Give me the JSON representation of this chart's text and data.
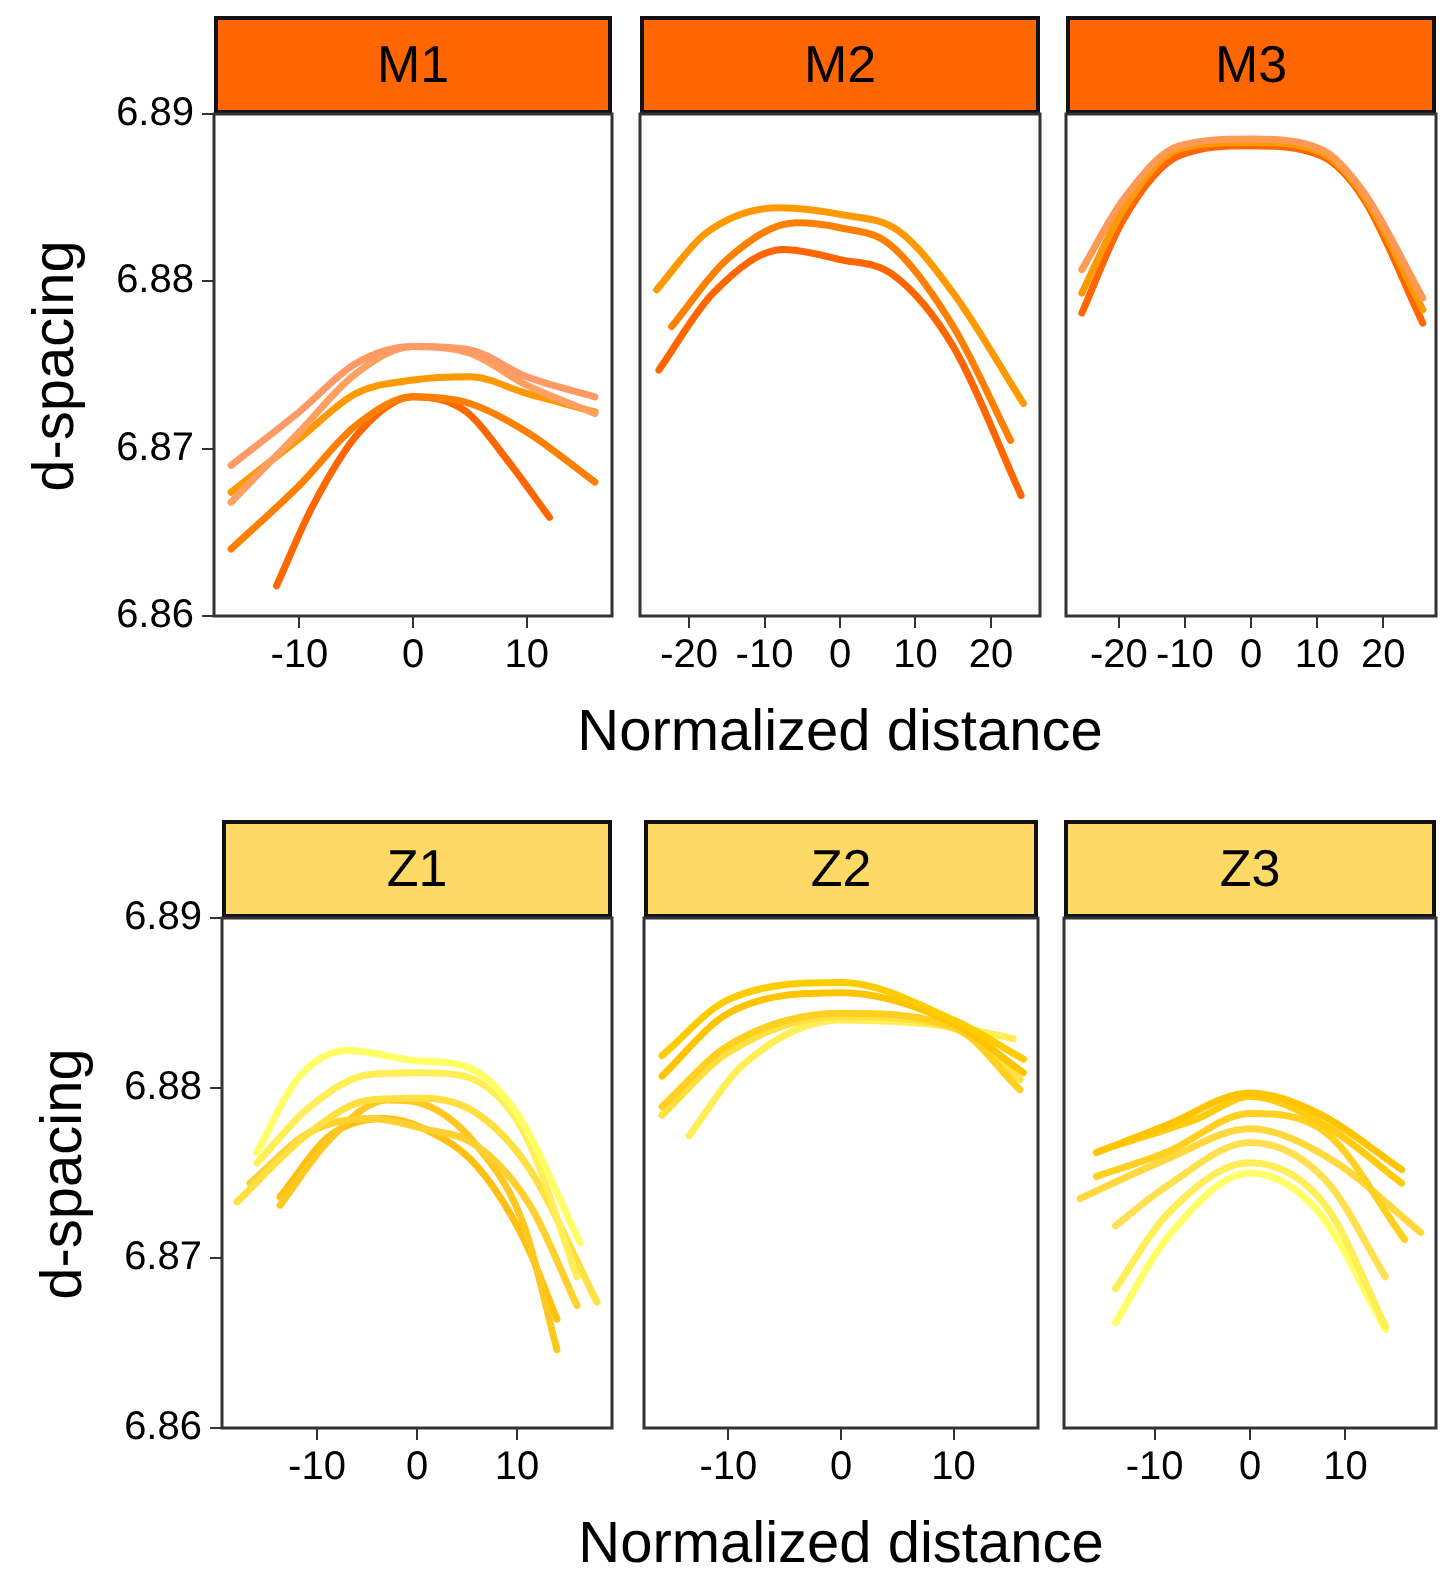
{
  "chart_data": [
    {
      "type": "line",
      "title": "M1",
      "ylabel": "d-spacing",
      "xlim": [
        -17.5,
        17.5
      ],
      "xticks": [
        -10,
        0,
        10
      ],
      "ylim": [
        6.86,
        6.89
      ],
      "yticks": [
        6.86,
        6.87,
        6.88,
        6.89
      ],
      "legend": false,
      "series": [
        {
          "color": "#ff9966",
          "x": [
            -16,
            -10,
            -5,
            0,
            5,
            10,
            16
          ],
          "values": [
            6.869,
            6.8722,
            6.8751,
            6.8761,
            6.8759,
            6.8743,
            6.8731
          ]
        },
        {
          "color": "#ffa060",
          "x": [
            -16,
            -10,
            -5,
            0,
            5,
            10,
            16
          ],
          "values": [
            6.8668,
            6.871,
            6.8745,
            6.8761,
            6.8757,
            6.8738,
            6.8721
          ]
        },
        {
          "color": "#ff9900",
          "x": [
            -16,
            -10,
            -5,
            0,
            5,
            10,
            16
          ],
          "values": [
            6.8674,
            6.8706,
            6.8733,
            6.8741,
            6.8743,
            6.8733,
            6.8722
          ]
        },
        {
          "color": "#ff8000",
          "x": [
            -16,
            -10,
            -5,
            0,
            5,
            10,
            16
          ],
          "values": [
            6.864,
            6.8678,
            6.8714,
            6.8731,
            6.8727,
            6.871,
            6.868
          ]
        },
        {
          "color": "#ff6600",
          "x": [
            -12,
            -8.8,
            -4.7,
            0,
            4.7,
            8.2,
            12
          ],
          "values": [
            6.8618,
            6.8666,
            6.871,
            6.8731,
            6.8722,
            6.8694,
            6.8659
          ]
        }
      ]
    },
    {
      "type": "line",
      "title": "M2",
      "xlabel": "Normalized distance",
      "xlim": [
        -26.5,
        26.5
      ],
      "xticks": [
        -20,
        -10,
        0,
        10,
        20
      ],
      "ylim": [
        6.86,
        6.89
      ],
      "yticks": [
        6.86,
        6.87,
        6.88,
        6.89
      ],
      "tick_labels": "x",
      "legend": false,
      "series": [
        {
          "color": "#ff9900",
          "x": [
            -24.3,
            -17.7,
            -8,
            0,
            7.8,
            15,
            24.3
          ],
          "values": [
            6.8795,
            6.8829,
            6.8844,
            6.884,
            6.883,
            6.8793,
            6.8727
          ]
        },
        {
          "color": "#ff8000",
          "x": [
            -22.3,
            -15,
            -5.8,
            0,
            6.6,
            15,
            22.6
          ],
          "values": [
            6.8773,
            6.8813,
            6.8835,
            6.8832,
            6.8822,
            6.8773,
            6.8705
          ]
        },
        {
          "color": "#ff6600",
          "x": [
            -24,
            -16.8,
            -7.5,
            0,
            7,
            15,
            24
          ],
          "values": [
            6.8747,
            6.8793,
            6.8819,
            6.8813,
            6.8804,
            6.8761,
            6.8672
          ]
        }
      ]
    },
    {
      "type": "line",
      "title": "M3",
      "xlim": [
        -28,
        28
      ],
      "xticks": [
        -20,
        -10,
        0,
        10,
        20
      ],
      "ylim": [
        6.86,
        6.89
      ],
      "yticks": [
        6.86,
        6.87,
        6.88,
        6.89
      ],
      "tick_labels": "x",
      "legend": false,
      "series": [
        {
          "color": "#ff9955",
          "x": [
            -25.6,
            -19.3,
            -10.9,
            0,
            10.6,
            17.1,
            26
          ],
          "values": [
            6.8807,
            6.8849,
            6.8881,
            6.8885,
            6.8879,
            6.8853,
            6.879
          ]
        },
        {
          "color": "#ff9900",
          "x": [
            -25.6,
            -19.3,
            -10.9,
            0,
            10.6,
            17.1,
            26
          ],
          "values": [
            6.8793,
            6.8843,
            6.8879,
            6.8883,
            6.8877,
            6.8851,
            6.8783
          ]
        },
        {
          "color": "#ff6600",
          "x": [
            -25.6,
            -19.3,
            -10.9,
            0,
            10.6,
            17.1,
            26
          ],
          "values": [
            6.8781,
            6.8837,
            6.8875,
            6.8881,
            6.8875,
            6.8849,
            6.8775
          ]
        }
      ]
    },
    {
      "type": "line",
      "title": "Z1",
      "ylabel": "d-spacing",
      "xlim": [
        -19.5,
        19.5
      ],
      "xticks": [
        -10,
        0,
        10
      ],
      "ylim": [
        6.86,
        6.89
      ],
      "yticks": [
        6.86,
        6.87,
        6.88,
        6.89
      ],
      "legend": false,
      "series": [
        {
          "color": "#ffff66",
          "x": [
            -16,
            -12,
            -7,
            0,
            4.7,
            10,
            16.3
          ],
          "values": [
            6.8762,
            6.8805,
            6.8822,
            6.8816,
            6.8813,
            6.8785,
            6.8709
          ]
        },
        {
          "color": "#ffee55",
          "x": [
            -16,
            -10.7,
            -4.7,
            0.7,
            4.7,
            10.7,
            16
          ],
          "values": [
            6.8756,
            6.8789,
            6.8808,
            6.8809,
            6.8807,
            6.8774,
            6.8689
          ]
        },
        {
          "color": "#ffe040",
          "x": [
            -18,
            -10.7,
            -4.7,
            0.7,
            6,
            11.3,
            18
          ],
          "values": [
            6.8733,
            6.8774,
            6.8793,
            6.8794,
            6.8785,
            6.8752,
            6.8674
          ]
        },
        {
          "color": "#ffd030",
          "x": [
            -16.7,
            -10.7,
            -4.7,
            0.7,
            6,
            11.3,
            16
          ],
          "values": [
            6.8744,
            6.8774,
            6.8782,
            6.8776,
            6.8766,
            6.8731,
            6.8672
          ]
        },
        {
          "color": "#ffc820",
          "x": [
            -13.7,
            -8.7,
            -3,
            1.3,
            6,
            10.7,
            14
          ],
          "values": [
            6.8731,
            6.877,
            6.8793,
            6.8789,
            6.8766,
            6.8719,
            6.8646
          ]
        },
        {
          "color": "#ffc010",
          "x": [
            -13.7,
            -8.7,
            -3.3,
            0.7,
            6,
            10.7,
            14
          ],
          "values": [
            6.8736,
            6.8772,
            6.8782,
            6.8776,
            6.8754,
            6.8711,
            6.8664
          ]
        }
      ]
    },
    {
      "type": "line",
      "title": "Z2",
      "xlabel": "Normalized distance",
      "xlim": [
        -17.5,
        17.5
      ],
      "xticks": [
        -10,
        0,
        10
      ],
      "ylim": [
        6.86,
        6.89
      ],
      "yticks": [
        6.86,
        6.87,
        6.88,
        6.89
      ],
      "tick_labels": "x",
      "legend": false,
      "series": [
        {
          "color": "#ffcc00",
          "x": [
            -15.9,
            -10,
            0,
            10,
            16.2
          ],
          "values": [
            6.8819,
            6.8852,
            6.8862,
            6.884,
            6.8817
          ]
        },
        {
          "color": "#ffc400",
          "x": [
            -15.9,
            -10,
            0,
            10,
            16.2
          ],
          "values": [
            6.8807,
            6.8844,
            6.8856,
            6.8838,
            6.8809
          ]
        },
        {
          "color": "#ffd020",
          "x": [
            -15.9,
            -10,
            0,
            10,
            15.9
          ],
          "values": [
            6.8789,
            6.8825,
            6.8844,
            6.8836,
            6.8799
          ]
        },
        {
          "color": "#ffe040",
          "x": [
            -15.9,
            -10,
            0,
            10,
            15.9
          ],
          "values": [
            6.8784,
            6.8821,
            6.8842,
            6.8835,
            6.8805
          ]
        },
        {
          "color": "#ffee55",
          "x": [
            -13.5,
            -8.8,
            0,
            10,
            15.3
          ],
          "values": [
            6.8772,
            6.8813,
            6.884,
            6.8836,
            6.8829
          ]
        }
      ]
    },
    {
      "type": "line",
      "title": "Z3",
      "xlim": [
        -19.5,
        19.5
      ],
      "xticks": [
        -10,
        0,
        10
      ],
      "ylim": [
        6.86,
        6.89
      ],
      "yticks": [
        6.86,
        6.87,
        6.88,
        6.89
      ],
      "tick_labels": "x",
      "legend": false,
      "series": [
        {
          "color": "#ffc400",
          "x": [
            -16.1,
            -8.8,
            0,
            7.2,
            15.9
          ],
          "values": [
            6.8762,
            6.8778,
            6.8797,
            6.8785,
            6.8752
          ]
        },
        {
          "color": "#ffcc10",
          "x": [
            -14.1,
            -5.5,
            0,
            7.9,
            15.9
          ],
          "values": [
            6.8766,
            6.8782,
            6.8795,
            6.8778,
            6.8744
          ]
        },
        {
          "color": "#ffd020",
          "x": [
            -16.1,
            -8.8,
            0,
            7.9,
            16.2
          ],
          "values": [
            6.8748,
            6.8762,
            6.8785,
            6.8774,
            6.8711
          ]
        },
        {
          "color": "#ffd840",
          "x": [
            -17.8,
            -8.8,
            0,
            8.5,
            17.9
          ],
          "values": [
            6.8735,
            6.8758,
            6.8776,
            6.8758,
            6.8715
          ]
        },
        {
          "color": "#ffe050",
          "x": [
            -14.1,
            -8.8,
            0,
            7.9,
            14.2
          ],
          "values": [
            6.8719,
            6.8742,
            6.8768,
            6.8746,
            6.8689
          ]
        },
        {
          "color": "#ffee55",
          "x": [
            -14.1,
            -8.8,
            0,
            7.9,
            14.2
          ],
          "values": [
            6.8682,
            6.8725,
            6.8756,
            6.8731,
            6.866
          ]
        },
        {
          "color": "#ffff66",
          "x": [
            -14.1,
            -8.8,
            0,
            7.2,
            14.2
          ],
          "values": [
            6.8662,
            6.8711,
            6.875,
            6.8727,
            6.8658
          ]
        }
      ]
    }
  ]
}
